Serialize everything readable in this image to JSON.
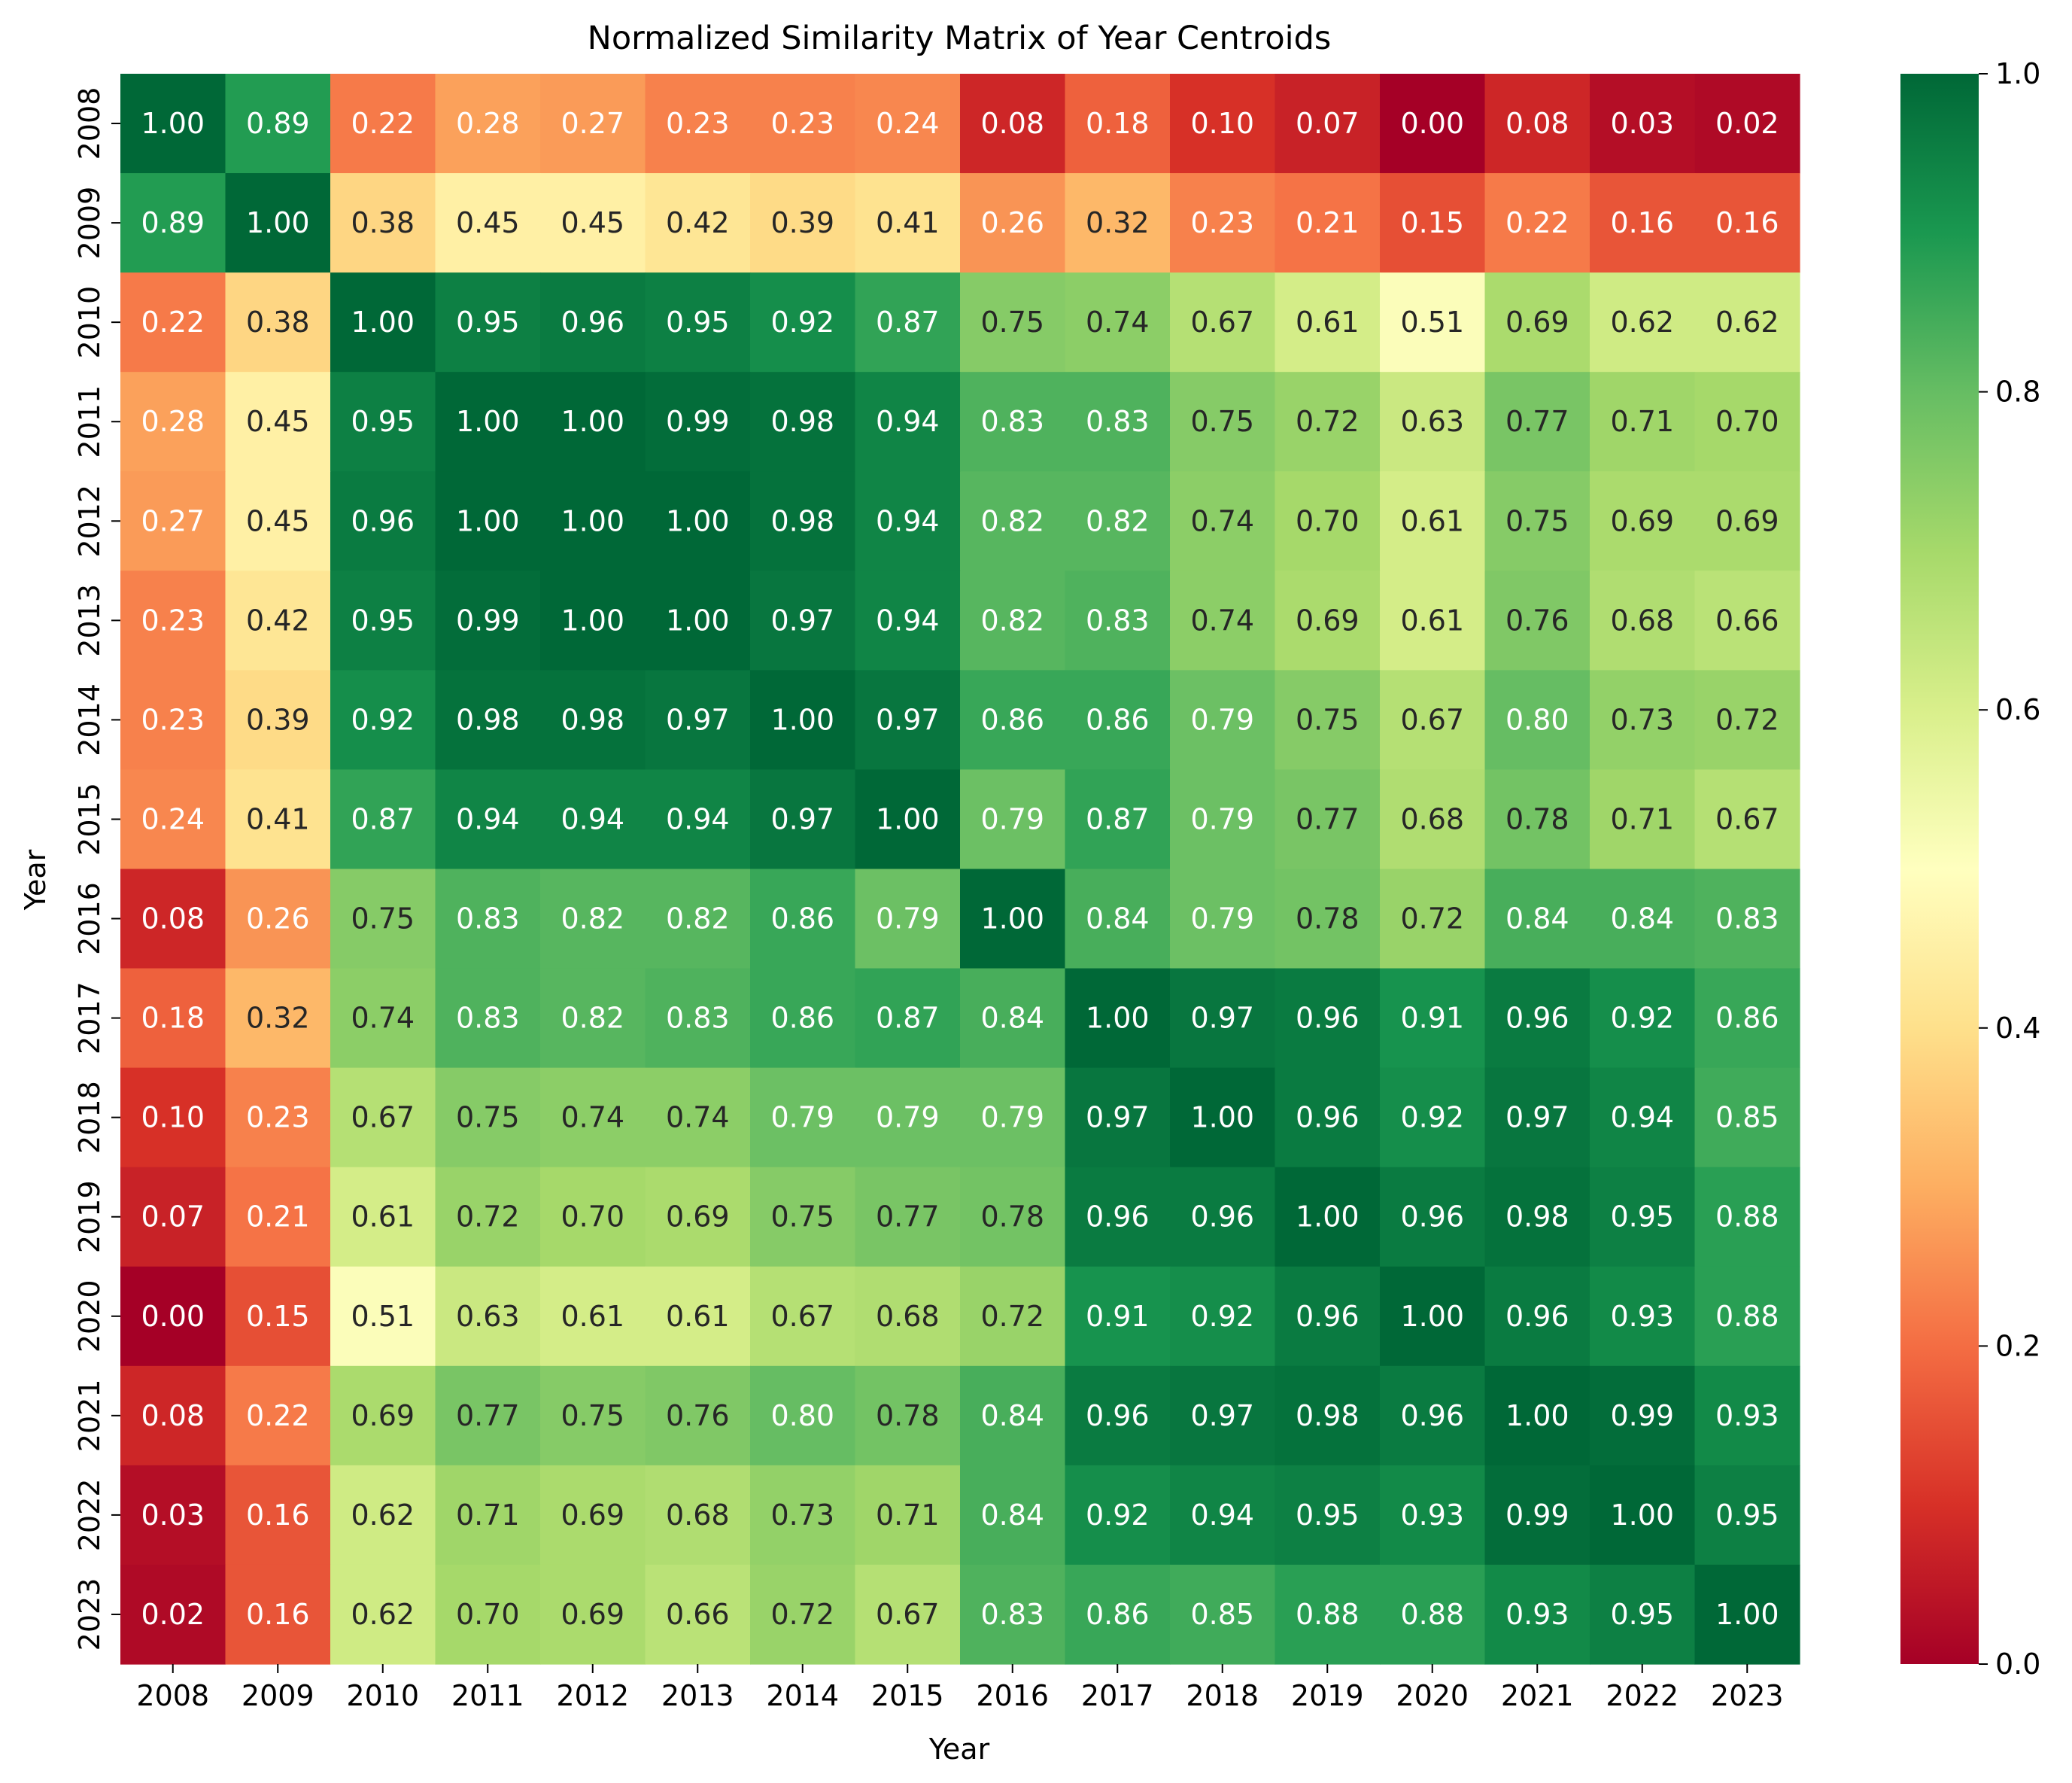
{
  "chart_data": {
    "type": "heatmap",
    "title": "Normalized Similarity Matrix of Year Centroids",
    "xlabel": "Year",
    "ylabel": "Year",
    "categories": [
      "2008",
      "2009",
      "2010",
      "2011",
      "2012",
      "2013",
      "2014",
      "2015",
      "2016",
      "2017",
      "2018",
      "2019",
      "2020",
      "2021",
      "2022",
      "2023"
    ],
    "values": [
      [
        1.0,
        0.89,
        0.22,
        0.28,
        0.27,
        0.23,
        0.23,
        0.24,
        0.08,
        0.18,
        0.1,
        0.07,
        0.0,
        0.08,
        0.03,
        0.02
      ],
      [
        0.89,
        1.0,
        0.38,
        0.45,
        0.45,
        0.42,
        0.39,
        0.41,
        0.26,
        0.32,
        0.23,
        0.21,
        0.15,
        0.22,
        0.16,
        0.16
      ],
      [
        0.22,
        0.38,
        1.0,
        0.95,
        0.96,
        0.95,
        0.92,
        0.87,
        0.75,
        0.74,
        0.67,
        0.61,
        0.51,
        0.69,
        0.62,
        0.62
      ],
      [
        0.28,
        0.45,
        0.95,
        1.0,
        1.0,
        0.99,
        0.98,
        0.94,
        0.83,
        0.83,
        0.75,
        0.72,
        0.63,
        0.77,
        0.71,
        0.7
      ],
      [
        0.27,
        0.45,
        0.96,
        1.0,
        1.0,
        1.0,
        0.98,
        0.94,
        0.82,
        0.82,
        0.74,
        0.7,
        0.61,
        0.75,
        0.69,
        0.69
      ],
      [
        0.23,
        0.42,
        0.95,
        0.99,
        1.0,
        1.0,
        0.97,
        0.94,
        0.82,
        0.83,
        0.74,
        0.69,
        0.61,
        0.76,
        0.68,
        0.66
      ],
      [
        0.23,
        0.39,
        0.92,
        0.98,
        0.98,
        0.97,
        1.0,
        0.97,
        0.86,
        0.86,
        0.79,
        0.75,
        0.67,
        0.8,
        0.73,
        0.72
      ],
      [
        0.24,
        0.41,
        0.87,
        0.94,
        0.94,
        0.94,
        0.97,
        1.0,
        0.79,
        0.87,
        0.79,
        0.77,
        0.68,
        0.78,
        0.71,
        0.67
      ],
      [
        0.08,
        0.26,
        0.75,
        0.83,
        0.82,
        0.82,
        0.86,
        0.79,
        1.0,
        0.84,
        0.79,
        0.78,
        0.72,
        0.84,
        0.84,
        0.83
      ],
      [
        0.18,
        0.32,
        0.74,
        0.83,
        0.82,
        0.83,
        0.86,
        0.87,
        0.84,
        1.0,
        0.97,
        0.96,
        0.91,
        0.96,
        0.92,
        0.86
      ],
      [
        0.1,
        0.23,
        0.67,
        0.75,
        0.74,
        0.74,
        0.79,
        0.79,
        0.79,
        0.97,
        1.0,
        0.96,
        0.92,
        0.97,
        0.94,
        0.85
      ],
      [
        0.07,
        0.21,
        0.61,
        0.72,
        0.7,
        0.69,
        0.75,
        0.77,
        0.78,
        0.96,
        0.96,
        1.0,
        0.96,
        0.98,
        0.95,
        0.88
      ],
      [
        0.0,
        0.15,
        0.51,
        0.63,
        0.61,
        0.61,
        0.67,
        0.68,
        0.72,
        0.91,
        0.92,
        0.96,
        1.0,
        0.96,
        0.93,
        0.88
      ],
      [
        0.08,
        0.22,
        0.69,
        0.77,
        0.75,
        0.76,
        0.8,
        0.78,
        0.84,
        0.96,
        0.97,
        0.98,
        0.96,
        1.0,
        0.99,
        0.93
      ],
      [
        0.03,
        0.16,
        0.62,
        0.71,
        0.69,
        0.68,
        0.73,
        0.71,
        0.84,
        0.92,
        0.94,
        0.95,
        0.93,
        0.99,
        1.0,
        0.95
      ],
      [
        0.02,
        0.16,
        0.62,
        0.7,
        0.69,
        0.66,
        0.72,
        0.67,
        0.83,
        0.86,
        0.85,
        0.88,
        0.88,
        0.93,
        0.95,
        1.0
      ]
    ],
    "colorscale": "RdYlGn",
    "vmin": 0.0,
    "vmax": 1.0,
    "colorbar_ticks": [
      "0.0",
      "0.2",
      "0.4",
      "0.6",
      "0.8",
      "1.0"
    ],
    "colorbar_tick_values": [
      0.0,
      0.2,
      0.4,
      0.6,
      0.8,
      1.0
    ],
    "annotation_format": "0.00"
  }
}
